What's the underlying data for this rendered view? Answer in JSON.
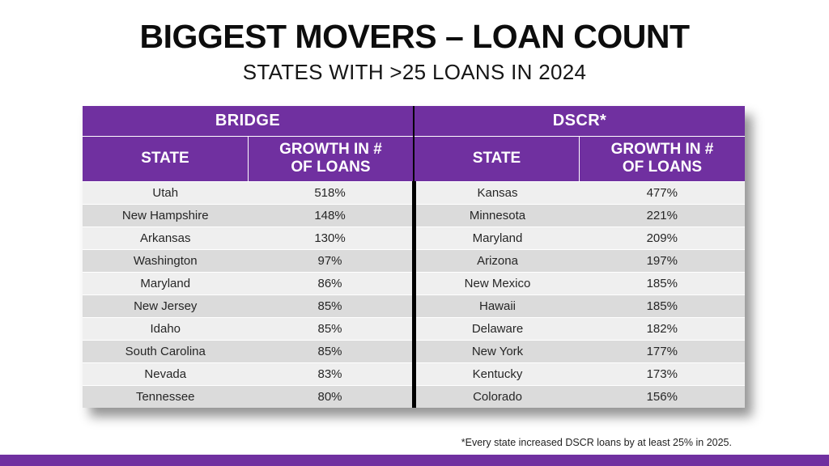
{
  "slide": {
    "title": "BIGGEST MOVERS – LOAN COUNT",
    "subtitle": "STATES WITH >25 LOANS IN 2024",
    "footnote": "*Every state increased DSCR loans by at least 25% in 2025."
  },
  "colors": {
    "accent_purple": "#7030A0",
    "row_light": "#EFEFEF",
    "row_dark": "#DBDBDB"
  },
  "table": {
    "group_headers": {
      "bridge": "BRIDGE",
      "dscr": "DSCR*"
    },
    "column_headers": {
      "bridge_state": "STATE",
      "bridge_growth": "GROWTH IN # OF LOANS",
      "dscr_state": "STATE",
      "dscr_growth": "GROWTH IN # OF LOANS"
    },
    "rows": [
      {
        "bridge_state": "Utah",
        "bridge_growth": "518%",
        "dscr_state": "Kansas",
        "dscr_growth": "477%"
      },
      {
        "bridge_state": "New Hampshire",
        "bridge_growth": "148%",
        "dscr_state": "Minnesota",
        "dscr_growth": "221%"
      },
      {
        "bridge_state": "Arkansas",
        "bridge_growth": "130%",
        "dscr_state": "Maryland",
        "dscr_growth": "209%"
      },
      {
        "bridge_state": "Washington",
        "bridge_growth": "97%",
        "dscr_state": "Arizona",
        "dscr_growth": "197%"
      },
      {
        "bridge_state": "Maryland",
        "bridge_growth": "86%",
        "dscr_state": "New Mexico",
        "dscr_growth": "185%"
      },
      {
        "bridge_state": "New Jersey",
        "bridge_growth": "85%",
        "dscr_state": "Hawaii",
        "dscr_growth": "185%"
      },
      {
        "bridge_state": "Idaho",
        "bridge_growth": "85%",
        "dscr_state": "Delaware",
        "dscr_growth": "182%"
      },
      {
        "bridge_state": "South Carolina",
        "bridge_growth": "85%",
        "dscr_state": "New York",
        "dscr_growth": "177%"
      },
      {
        "bridge_state": "Nevada",
        "bridge_growth": "83%",
        "dscr_state": "Kentucky",
        "dscr_growth": "173%"
      },
      {
        "bridge_state": "Tennessee",
        "bridge_growth": "80%",
        "dscr_state": "Colorado",
        "dscr_growth": "156%"
      }
    ]
  }
}
